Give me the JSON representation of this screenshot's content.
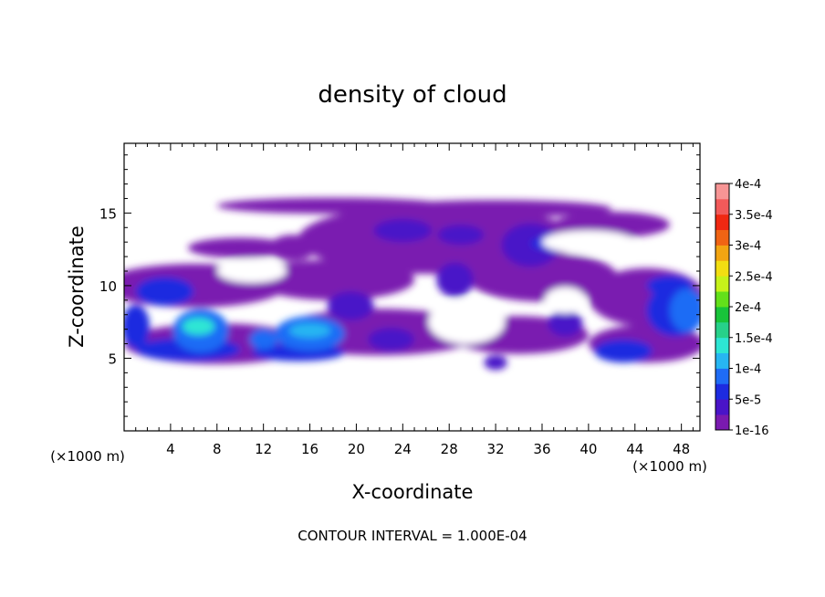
{
  "chart_data": {
    "type": "heatmap",
    "title": "density of cloud",
    "xlabel": "X-coordinate",
    "ylabel": "Z-coordinate",
    "x_unit_left": "(×1000 m)",
    "x_unit_right": "(×1000 m)",
    "xlim": [
      0,
      49.6
    ],
    "ylim": [
      0,
      19.8
    ],
    "x_ticks": [
      4,
      8,
      12,
      16,
      20,
      24,
      28,
      32,
      36,
      40,
      44,
      48
    ],
    "y_ticks": [
      5,
      10,
      15
    ],
    "footer": "CONTOUR INTERVAL = 1.000E-04",
    "colorbar": {
      "labels": [
        "1e-16",
        "5e-5",
        "1e-4",
        "1.5e-4",
        "2e-4",
        "2.5e-4",
        "3e-4",
        "3.5e-4",
        "4e-4"
      ],
      "colors": [
        "#7a1ab0",
        "#4a14c8",
        "#1d2be0",
        "#1f6cf5",
        "#27b6f2",
        "#2de6d4",
        "#27d18a",
        "#18c43a",
        "#63e01a",
        "#c6f21a",
        "#f2de12",
        "#f2a512",
        "#f06414",
        "#f02812",
        "#f25a5a",
        "#f79595"
      ]
    },
    "blobs": [
      {
        "x": 18.0,
        "z": 15.5,
        "rx": 10.0,
        "rz": 0.55,
        "level": 0.05
      },
      {
        "x": 32.0,
        "z": 15.3,
        "rx": 10.0,
        "rz": 0.6,
        "level": 0.05
      },
      {
        "x": 42.0,
        "z": 14.2,
        "rx": 5.0,
        "rz": 0.9,
        "level": 0.05
      },
      {
        "x": 27.0,
        "z": 13.2,
        "rx": 12.0,
        "rz": 2.4,
        "level": 0.07
      },
      {
        "x": 10.0,
        "z": 12.6,
        "rx": 4.5,
        "rz": 0.7,
        "level": 0.04
      },
      {
        "x": 6.0,
        "z": 10.0,
        "rx": 8.0,
        "rz": 1.5,
        "level": 0.06
      },
      {
        "x": 18.0,
        "z": 10.4,
        "rx": 7.0,
        "rz": 1.4,
        "level": 0.06
      },
      {
        "x": 36.0,
        "z": 10.6,
        "rx": 6.5,
        "rz": 1.7,
        "level": 0.06
      },
      {
        "x": 45.0,
        "z": 9.2,
        "rx": 5.0,
        "rz": 2.0,
        "level": 0.07
      },
      {
        "x": 22.0,
        "z": 6.8,
        "rx": 9.0,
        "rz": 1.6,
        "level": 0.06
      },
      {
        "x": 34.0,
        "z": 6.6,
        "rx": 6.0,
        "rz": 1.3,
        "level": 0.05
      },
      {
        "x": 8.0,
        "z": 6.0,
        "rx": 8.0,
        "rz": 1.4,
        "level": 0.07
      },
      {
        "x": 45.0,
        "z": 6.0,
        "rx": 5.0,
        "rz": 1.3,
        "level": 0.06
      },
      {
        "x": 25.0,
        "z": 12.5,
        "rx": 4.5,
        "rz": 1.7,
        "level": 0.19
      },
      {
        "x": 29.0,
        "z": 13.5,
        "rx": 2.0,
        "rz": 0.7,
        "level": 0.3
      },
      {
        "x": 24.0,
        "z": 13.8,
        "rx": 2.5,
        "rz": 0.8,
        "level": 0.25
      },
      {
        "x": 14.5,
        "z": 12.6,
        "rx": 2.0,
        "rz": 0.9,
        "level": 0.22
      },
      {
        "x": 35.0,
        "z": 12.8,
        "rx": 2.5,
        "rz": 1.5,
        "level": 0.45
      },
      {
        "x": 36.0,
        "z": 12.9,
        "rx": 1.0,
        "rz": 0.4,
        "level": 0.7
      },
      {
        "x": 28.5,
        "z": 10.4,
        "rx": 1.6,
        "rz": 1.2,
        "level": 0.35
      },
      {
        "x": 3.5,
        "z": 9.6,
        "rx": 2.5,
        "rz": 1.0,
        "level": 0.55
      },
      {
        "x": 1.0,
        "z": 7.2,
        "rx": 1.2,
        "rz": 1.5,
        "level": 0.5
      },
      {
        "x": 6.6,
        "z": 6.9,
        "rx": 2.4,
        "rz": 1.5,
        "level": 0.95
      },
      {
        "x": 6.4,
        "z": 7.2,
        "rx": 1.4,
        "rz": 0.6,
        "level": 1.35
      },
      {
        "x": 5.5,
        "z": 5.6,
        "rx": 4.5,
        "rz": 0.8,
        "level": 0.6
      },
      {
        "x": 16.0,
        "z": 6.7,
        "rx": 3.0,
        "rz": 1.2,
        "level": 0.95
      },
      {
        "x": 16.0,
        "z": 6.9,
        "rx": 1.8,
        "rz": 0.5,
        "level": 1.2
      },
      {
        "x": 12.0,
        "z": 6.3,
        "rx": 1.2,
        "rz": 0.7,
        "level": 0.75
      },
      {
        "x": 15.0,
        "z": 5.4,
        "rx": 4.0,
        "rz": 0.6,
        "level": 0.55
      },
      {
        "x": 19.5,
        "z": 8.6,
        "rx": 2.0,
        "rz": 1.0,
        "level": 0.4
      },
      {
        "x": 23.0,
        "z": 6.3,
        "rx": 2.0,
        "rz": 0.8,
        "level": 0.35
      },
      {
        "x": 32.0,
        "z": 4.7,
        "rx": 1.0,
        "rz": 0.5,
        "level": 0.4
      },
      {
        "x": 38.0,
        "z": 7.4,
        "rx": 1.5,
        "rz": 0.9,
        "level": 0.3
      },
      {
        "x": 43.0,
        "z": 5.5,
        "rx": 2.5,
        "rz": 0.8,
        "level": 0.6
      },
      {
        "x": 47.5,
        "z": 8.3,
        "rx": 2.5,
        "rz": 1.8,
        "level": 0.7
      },
      {
        "x": 48.5,
        "z": 8.3,
        "rx": 1.5,
        "rz": 1.5,
        "level": 0.9
      },
      {
        "x": 47.0,
        "z": 10.0,
        "rx": 2.0,
        "rz": 0.7,
        "level": 0.55
      }
    ],
    "holes": [
      {
        "x": 29.5,
        "z": 7.5,
        "rx": 3.3,
        "rz": 1.5
      },
      {
        "x": 38.0,
        "z": 9.0,
        "rx": 1.8,
        "rz": 0.9
      },
      {
        "x": 11.0,
        "z": 11.0,
        "rx": 3.0,
        "rz": 0.8
      },
      {
        "x": 40.0,
        "z": 13.0,
        "rx": 4.0,
        "rz": 0.8
      }
    ]
  }
}
